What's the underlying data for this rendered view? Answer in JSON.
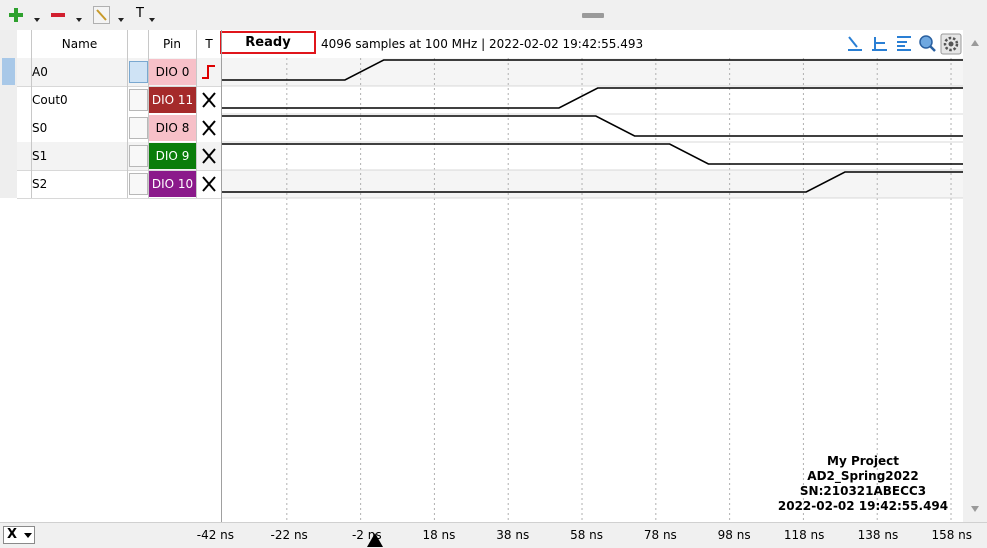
{
  "toolbar": {
    "add_icon": "plus-icon",
    "remove_icon": "minus-icon",
    "edit_icon": "edit-icon",
    "text_label": "T"
  },
  "header": {
    "name_label": "Name",
    "pin_label": "Pin",
    "trigger_label": "T",
    "status": "Ready",
    "info": "4096 samples at 100 MHz | 2022-02-02 19:42:55.493"
  },
  "signals": [
    {
      "name": "A0",
      "pin": "DIO  0",
      "pin_bg": "#f7c0c8",
      "pin_fg": "#000000",
      "trigger": "rising-edge-icon"
    },
    {
      "name": "Cout0",
      "pin": "DIO 11",
      "pin_bg": "#a52a2a",
      "pin_fg": "#ffffff",
      "trigger": "x-icon"
    },
    {
      "name": "S0",
      "pin": "DIO  8",
      "pin_bg": "#f7c0c8",
      "pin_fg": "#000000",
      "trigger": "x-icon"
    },
    {
      "name": "S1",
      "pin": "DIO  9",
      "pin_bg": "#0a7d0a",
      "pin_fg": "#ffffff",
      "trigger": "x-icon"
    },
    {
      "name": "S2",
      "pin": "DIO 10",
      "pin_bg": "#8b1a8b",
      "pin_fg": "#ffffff",
      "trigger": "x-icon"
    }
  ],
  "waveforms": [
    {
      "name": "A0",
      "initial": 0,
      "transition_ns": -1
    },
    {
      "name": "Cout0",
      "initial": 0,
      "transition_ns": 57
    },
    {
      "name": "S0",
      "initial": 1,
      "transition_ns": 67
    },
    {
      "name": "S1",
      "initial": 1,
      "transition_ns": 87
    },
    {
      "name": "S2",
      "initial": 0,
      "transition_ns": 124
    }
  ],
  "project": {
    "line1": "My Project",
    "line2": "AD2_Spring2022",
    "line3": "SN:210321ABECC3",
    "line4": "2022-02-02 19:42:55.494"
  },
  "axis": {
    "selector": "X",
    "ticks": [
      "-42 ns",
      "-22 ns",
      "-2 ns",
      "18 ns",
      "38 ns",
      "58 ns",
      "78 ns",
      "98 ns",
      "118 ns",
      "138 ns",
      "158 ns"
    ]
  },
  "colors": {
    "status_border": "#e0151b",
    "trace": "#000000",
    "grid": "#b0b0b0"
  }
}
